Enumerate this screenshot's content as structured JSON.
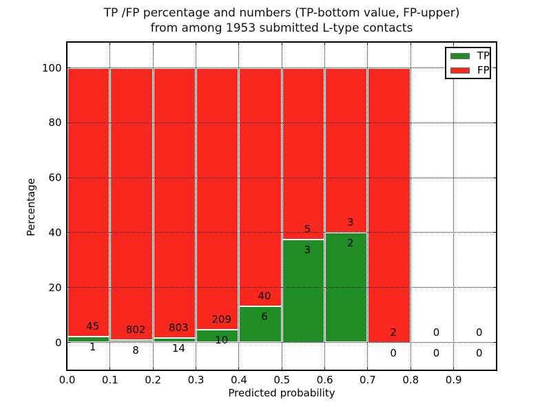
{
  "chart_data": {
    "type": "bar",
    "stacked": true,
    "title_line1": "TP /FP percentage and numbers (TP-bottom value, FP-upper)",
    "title_line2": "from among 1953 submitted L-type contacts",
    "xlabel": "Predicted probability",
    "ylabel": "Percentage",
    "total_submitted_contacts": 1953,
    "xlim": [
      0.0,
      1.0
    ],
    "ylim": [
      -10,
      110
    ],
    "bin_width": 0.1,
    "bin_starts": [
      0.0,
      0.1,
      0.2,
      0.3,
      0.4,
      0.5,
      0.6,
      0.7,
      0.8,
      0.9
    ],
    "xtick_labels": [
      "0.0",
      "0.1",
      "0.2",
      "0.3",
      "0.4",
      "0.5",
      "0.6",
      "0.7",
      "0.8",
      "0.9"
    ],
    "ytick_values": [
      0,
      20,
      40,
      60,
      80,
      100
    ],
    "grid_style": "dotted",
    "bar_edge_color": "#ffffff",
    "annotation_note": "FP count above boundary, TP count below boundary",
    "series": [
      {
        "name": "TP",
        "color": "#1f8c26",
        "counts": [
          1,
          8,
          14,
          10,
          6,
          3,
          2,
          0,
          0,
          0
        ],
        "pct_of_bin": [
          2.17,
          0.99,
          1.71,
          4.57,
          13.04,
          37.5,
          40.0,
          0.0,
          0.0,
          0.0
        ]
      },
      {
        "name": "FP",
        "color": "#f8281e",
        "counts": [
          45,
          802,
          803,
          209,
          40,
          5,
          3,
          2,
          0,
          0
        ],
        "pct_of_bin": [
          97.83,
          99.01,
          98.29,
          95.43,
          86.96,
          62.5,
          60.0,
          100.0,
          0.0,
          0.0
        ]
      }
    ],
    "legend": {
      "position": "upper right",
      "entries": [
        {
          "label": "TP",
          "color": "#1f8c26"
        },
        {
          "label": "FP",
          "color": "#f8281e"
        }
      ]
    }
  }
}
